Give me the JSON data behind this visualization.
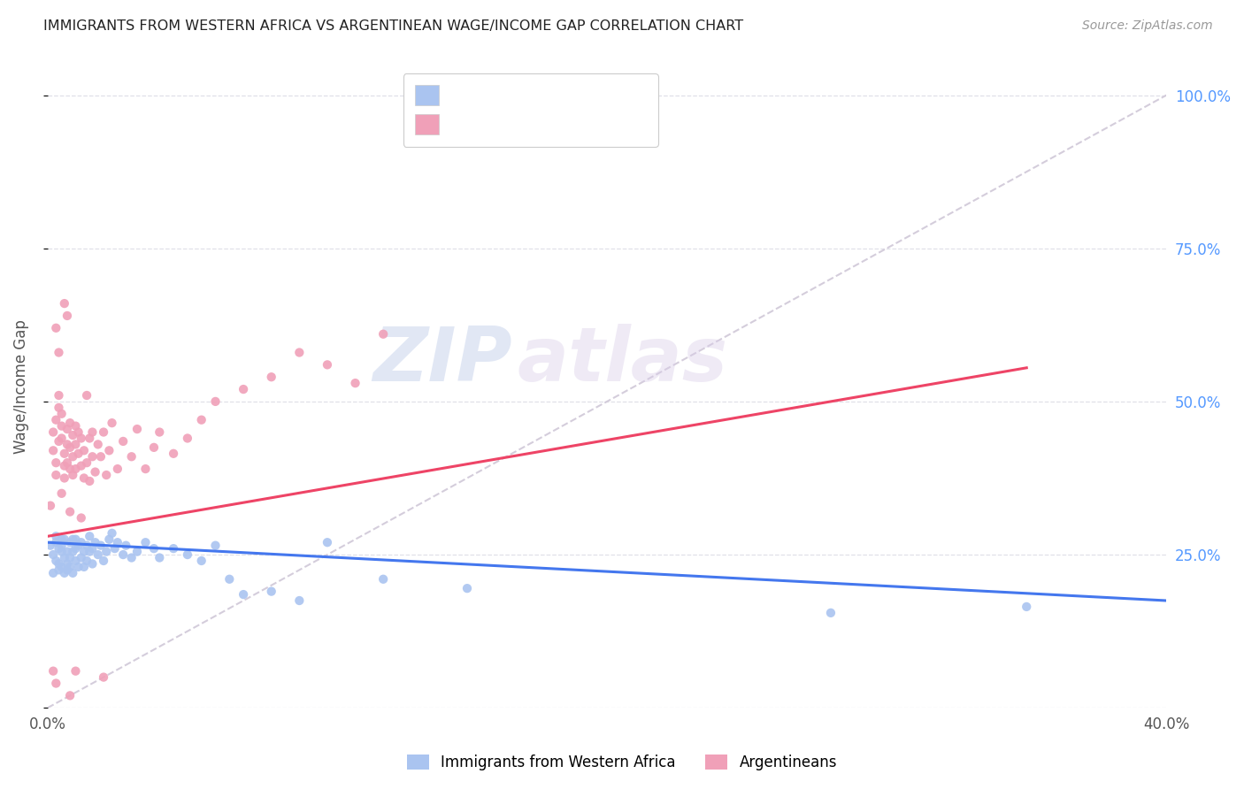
{
  "title": "IMMIGRANTS FROM WESTERN AFRICA VS ARGENTINEAN WAGE/INCOME GAP CORRELATION CHART",
  "source": "Source: ZipAtlas.com",
  "ylabel": "Wage/Income Gap",
  "ytick_labels": [
    "",
    "25.0%",
    "50.0%",
    "75.0%",
    "100.0%"
  ],
  "ytick_values": [
    0.0,
    0.25,
    0.5,
    0.75,
    1.0
  ],
  "xlim": [
    0.0,
    0.4
  ],
  "ylim": [
    0.0,
    1.05
  ],
  "legend_label_blue": "Immigrants from Western Africa",
  "legend_label_pink": "Argentineans",
  "color_blue": "#aac4f0",
  "color_pink": "#f0a0b8",
  "color_blue_line": "#4477ee",
  "color_pink_line": "#ee4466",
  "color_dash_line": "#d0c8d8",
  "color_title": "#222222",
  "color_axis_right": "#5599ff",
  "watermark_zip": "ZIP",
  "watermark_atlas": "atlas",
  "blue_scatter_x": [
    0.001,
    0.002,
    0.002,
    0.003,
    0.003,
    0.003,
    0.004,
    0.004,
    0.004,
    0.005,
    0.005,
    0.005,
    0.005,
    0.006,
    0.006,
    0.006,
    0.007,
    0.007,
    0.007,
    0.008,
    0.008,
    0.008,
    0.009,
    0.009,
    0.009,
    0.01,
    0.01,
    0.01,
    0.011,
    0.011,
    0.012,
    0.012,
    0.013,
    0.013,
    0.014,
    0.014,
    0.015,
    0.015,
    0.016,
    0.016,
    0.017,
    0.018,
    0.019,
    0.02,
    0.021,
    0.022,
    0.023,
    0.024,
    0.025,
    0.027,
    0.028,
    0.03,
    0.032,
    0.035,
    0.038,
    0.04,
    0.045,
    0.05,
    0.055,
    0.06,
    0.065,
    0.07,
    0.08,
    0.09,
    0.1,
    0.12,
    0.15,
    0.28,
    0.35
  ],
  "blue_scatter_y": [
    0.265,
    0.22,
    0.25,
    0.27,
    0.24,
    0.28,
    0.235,
    0.26,
    0.225,
    0.255,
    0.275,
    0.23,
    0.265,
    0.22,
    0.245,
    0.275,
    0.235,
    0.255,
    0.225,
    0.245,
    0.27,
    0.23,
    0.255,
    0.275,
    0.22,
    0.26,
    0.24,
    0.275,
    0.23,
    0.265,
    0.245,
    0.27,
    0.255,
    0.23,
    0.265,
    0.24,
    0.255,
    0.28,
    0.235,
    0.26,
    0.27,
    0.25,
    0.265,
    0.24,
    0.255,
    0.275,
    0.285,
    0.26,
    0.27,
    0.25,
    0.265,
    0.245,
    0.255,
    0.27,
    0.26,
    0.245,
    0.26,
    0.25,
    0.24,
    0.265,
    0.21,
    0.185,
    0.19,
    0.175,
    0.27,
    0.21,
    0.195,
    0.155,
    0.165
  ],
  "pink_scatter_x": [
    0.001,
    0.002,
    0.002,
    0.003,
    0.003,
    0.003,
    0.004,
    0.004,
    0.004,
    0.005,
    0.005,
    0.005,
    0.006,
    0.006,
    0.006,
    0.007,
    0.007,
    0.007,
    0.008,
    0.008,
    0.008,
    0.009,
    0.009,
    0.009,
    0.01,
    0.01,
    0.01,
    0.011,
    0.011,
    0.012,
    0.012,
    0.013,
    0.013,
    0.014,
    0.014,
    0.015,
    0.015,
    0.016,
    0.016,
    0.017,
    0.018,
    0.019,
    0.02,
    0.021,
    0.022,
    0.023,
    0.025,
    0.027,
    0.03,
    0.032,
    0.035,
    0.038,
    0.04,
    0.045,
    0.05,
    0.055,
    0.06,
    0.07,
    0.08,
    0.09,
    0.1,
    0.11,
    0.12,
    0.005,
    0.008,
    0.012,
    0.003,
    0.004,
    0.006,
    0.007,
    0.002,
    0.003,
    0.008,
    0.01,
    0.02
  ],
  "pink_scatter_y": [
    0.33,
    0.42,
    0.45,
    0.4,
    0.38,
    0.47,
    0.435,
    0.49,
    0.51,
    0.44,
    0.46,
    0.48,
    0.395,
    0.415,
    0.375,
    0.43,
    0.455,
    0.4,
    0.39,
    0.425,
    0.465,
    0.38,
    0.41,
    0.445,
    0.43,
    0.46,
    0.39,
    0.415,
    0.45,
    0.395,
    0.44,
    0.42,
    0.375,
    0.51,
    0.4,
    0.44,
    0.37,
    0.41,
    0.45,
    0.385,
    0.43,
    0.41,
    0.45,
    0.38,
    0.42,
    0.465,
    0.39,
    0.435,
    0.41,
    0.455,
    0.39,
    0.425,
    0.45,
    0.415,
    0.44,
    0.47,
    0.5,
    0.52,
    0.54,
    0.58,
    0.56,
    0.53,
    0.61,
    0.35,
    0.32,
    0.31,
    0.62,
    0.58,
    0.66,
    0.64,
    0.06,
    0.04,
    0.02,
    0.06,
    0.05
  ],
  "blue_line_x": [
    0.0,
    0.4
  ],
  "blue_line_y": [
    0.27,
    0.175
  ],
  "pink_line_x": [
    0.0,
    0.35
  ],
  "pink_line_y": [
    0.28,
    0.555
  ],
  "dash_line_x": [
    0.0,
    0.4
  ],
  "dash_line_y": [
    0.0,
    1.0
  ]
}
